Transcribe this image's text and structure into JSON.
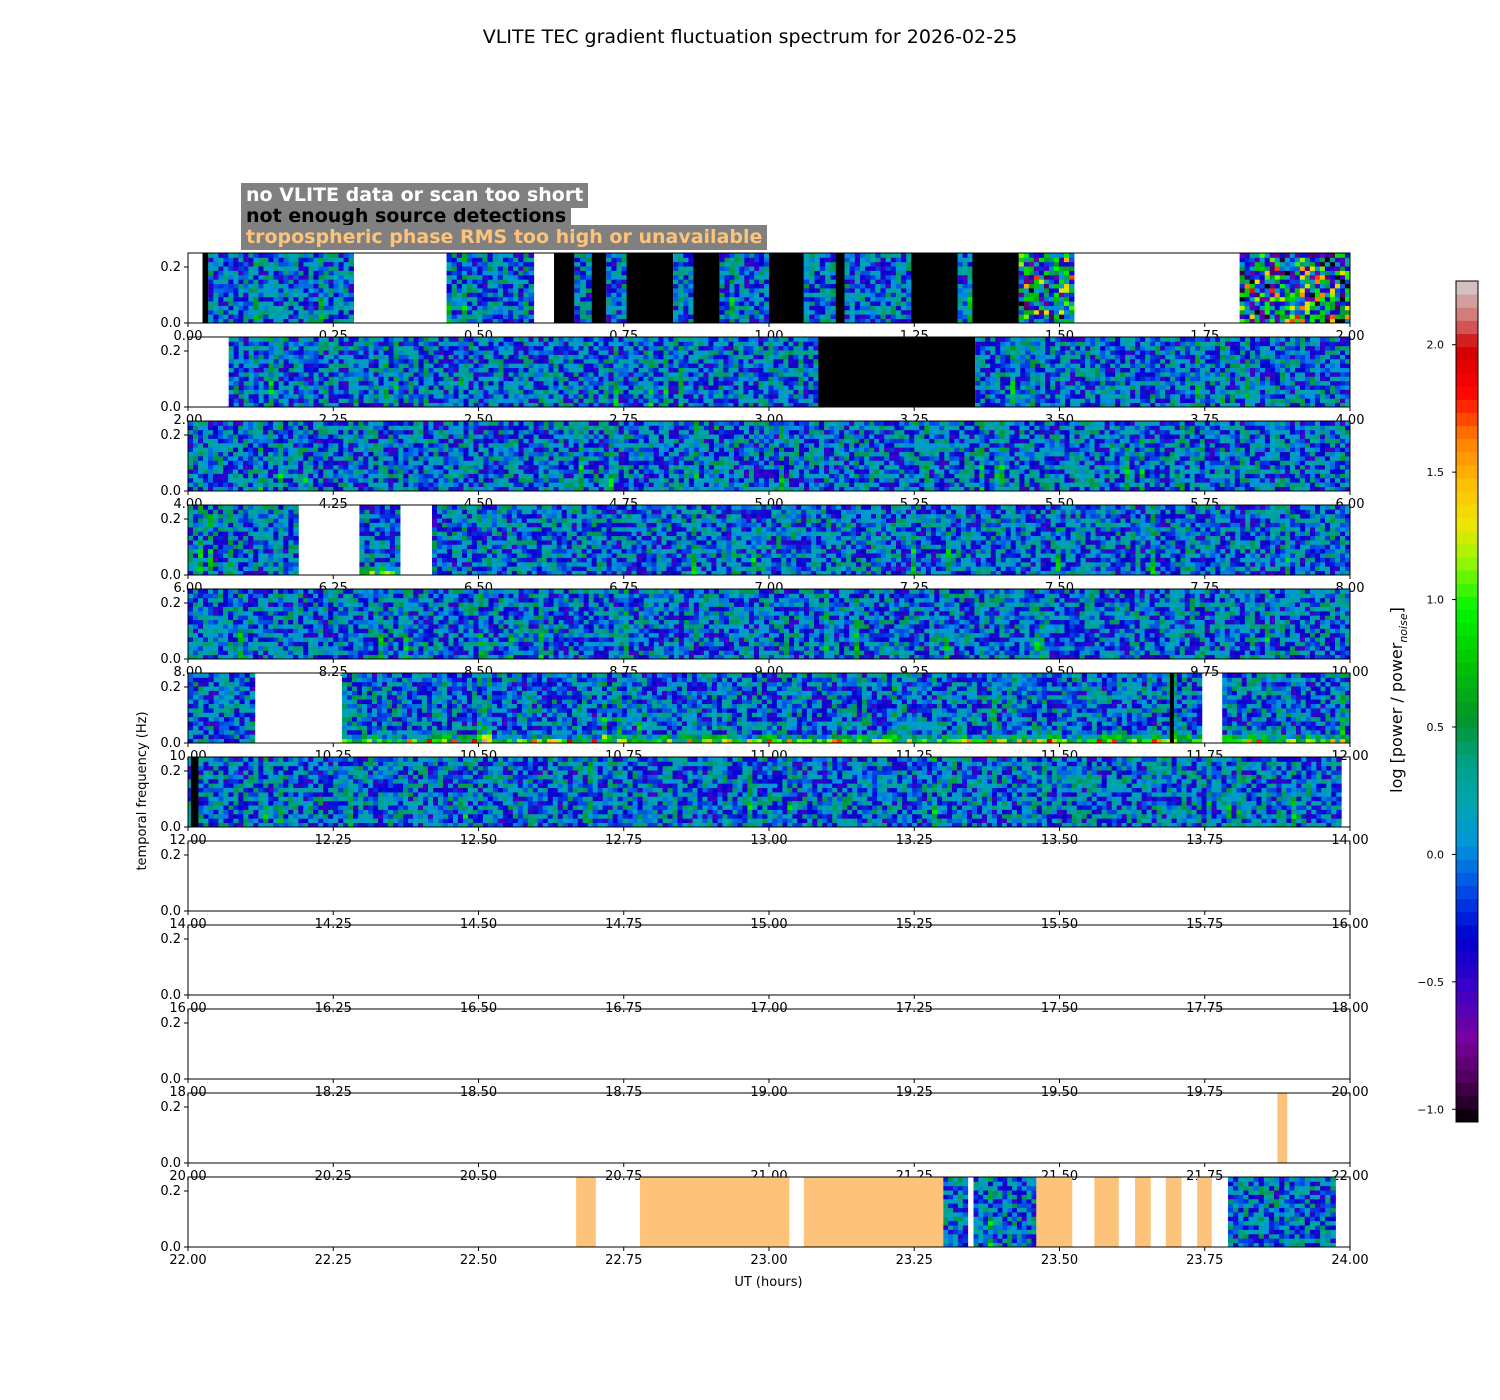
{
  "chart_data": {
    "type": "heatmap",
    "title": "VLITE TEC gradient fluctuation spectrum for 2026-02-25",
    "xlabel": "UT (hours)",
    "ylabel": "temporal frequency (Hz)",
    "colorbar_label": "log [power / power_noise]",
    "colorbar_label_main": "log [power / power",
    "colorbar_label_sub": "noise",
    "colorbar_label_end": "]",
    "colorbar_range": [
      -1.05,
      2.25
    ],
    "colorbar_ticks": [
      "−1.0",
      "−0.5",
      "0.0",
      "0.5",
      "1.0",
      "1.5",
      "2.0"
    ],
    "colorbar_tick_values": [
      -1.0,
      -0.5,
      0.0,
      0.5,
      1.0,
      1.5,
      2.0
    ],
    "y_ticks": [
      "0.0",
      "0.2"
    ],
    "y_tick_values": [
      0.0,
      0.2
    ],
    "ylim": [
      0,
      0.25
    ],
    "legend": [
      {
        "label": "no VLITE data or scan too short",
        "color": "#ffffff"
      },
      {
        "label": "not enough source detections",
        "color": "#000000"
      },
      {
        "label": "tropospheric phase RMS too high or unavailable",
        "color": "#fdc37a"
      }
    ],
    "colors": {
      "no_data": "#ffffff",
      "not_enough_detections": "#000000",
      "tropo_rms_high": "#fdc37a"
    },
    "panels": [
      {
        "xlim": [
          0,
          2
        ],
        "x_ticks": [
          "0.00",
          "0.25",
          "0.50",
          "0.75",
          "1.00",
          "1.25",
          "1.50",
          "1.75",
          "2.00"
        ],
        "segments": [
          {
            "start": 0.0,
            "end": 0.025,
            "kind": "none"
          },
          {
            "start": 0.025,
            "end": 0.035,
            "kind": "black"
          },
          {
            "start": 0.035,
            "end": 0.285,
            "kind": "data",
            "level": 0
          },
          {
            "start": 0.285,
            "end": 0.445,
            "kind": "none"
          },
          {
            "start": 0.445,
            "end": 0.595,
            "kind": "data",
            "level": 0
          },
          {
            "start": 0.595,
            "end": 0.63,
            "kind": "none"
          },
          {
            "start": 0.63,
            "end": 0.665,
            "kind": "black"
          },
          {
            "start": 0.665,
            "end": 0.695,
            "kind": "data",
            "level": 0
          },
          {
            "start": 0.695,
            "end": 0.72,
            "kind": "black"
          },
          {
            "start": 0.72,
            "end": 0.755,
            "kind": "data",
            "level": 0
          },
          {
            "start": 0.755,
            "end": 0.835,
            "kind": "black"
          },
          {
            "start": 0.835,
            "end": 0.87,
            "kind": "data",
            "level": 0
          },
          {
            "start": 0.87,
            "end": 0.915,
            "kind": "black"
          },
          {
            "start": 0.915,
            "end": 1.0,
            "kind": "data",
            "level": 0
          },
          {
            "start": 1.0,
            "end": 1.06,
            "kind": "black"
          },
          {
            "start": 1.06,
            "end": 1.115,
            "kind": "data",
            "level": 0
          },
          {
            "start": 1.115,
            "end": 1.13,
            "kind": "black"
          },
          {
            "start": 1.13,
            "end": 1.245,
            "kind": "data",
            "level": 0
          },
          {
            "start": 1.245,
            "end": 1.325,
            "kind": "black"
          },
          {
            "start": 1.325,
            "end": 1.35,
            "kind": "data",
            "level": 0
          },
          {
            "start": 1.35,
            "end": 1.43,
            "kind": "black"
          },
          {
            "start": 1.43,
            "end": 1.525,
            "kind": "data",
            "level": 2
          },
          {
            "start": 1.525,
            "end": 1.81,
            "kind": "none"
          },
          {
            "start": 1.81,
            "end": 2.0,
            "kind": "data",
            "level": 3
          }
        ]
      },
      {
        "xlim": [
          2,
          4
        ],
        "x_ticks": [
          "2.00",
          "2.25",
          "2.50",
          "2.75",
          "3.00",
          "3.25",
          "3.50",
          "3.75",
          "4.00"
        ],
        "segments": [
          {
            "start": 2.0,
            "end": 2.07,
            "kind": "none"
          },
          {
            "start": 2.07,
            "end": 3.085,
            "kind": "data",
            "level": 0
          },
          {
            "start": 3.085,
            "end": 3.355,
            "kind": "black"
          },
          {
            "start": 3.355,
            "end": 4.0,
            "kind": "data",
            "level": 0
          }
        ]
      },
      {
        "xlim": [
          4,
          6
        ],
        "x_ticks": [
          "4.00",
          "4.25",
          "4.50",
          "4.75",
          "5.00",
          "5.25",
          "5.50",
          "5.75",
          "6.00"
        ],
        "segments": [
          {
            "start": 4.0,
            "end": 6.0,
            "kind": "data",
            "level": 0
          }
        ]
      },
      {
        "xlim": [
          6,
          8
        ],
        "x_ticks": [
          "6.00",
          "6.25",
          "6.50",
          "6.75",
          "7.00",
          "7.25",
          "7.50",
          "7.75",
          "8.00"
        ],
        "segments": [
          {
            "start": 6.0,
            "end": 6.19,
            "kind": "data",
            "level": 0
          },
          {
            "start": 6.19,
            "end": 6.295,
            "kind": "none"
          },
          {
            "start": 6.295,
            "end": 6.365,
            "kind": "data",
            "level": 1
          },
          {
            "start": 6.365,
            "end": 6.42,
            "kind": "none"
          },
          {
            "start": 6.42,
            "end": 8.0,
            "kind": "data",
            "level": 0
          }
        ]
      },
      {
        "xlim": [
          8,
          10
        ],
        "x_ticks": [
          "8.00",
          "8.25",
          "8.50",
          "8.75",
          "9.00",
          "9.25",
          "9.50",
          "9.75",
          "10.00"
        ],
        "segments": [
          {
            "start": 8.0,
            "end": 10.0,
            "kind": "data",
            "level": 0
          }
        ]
      },
      {
        "xlim": [
          10,
          12
        ],
        "x_ticks": [
          "10.00",
          "10.25",
          "10.50",
          "10.75",
          "11.00",
          "11.25",
          "11.50",
          "11.75",
          "12.00"
        ],
        "segments": [
          {
            "start": 10.0,
            "end": 10.115,
            "kind": "data",
            "level": 0
          },
          {
            "start": 10.115,
            "end": 10.265,
            "kind": "none"
          },
          {
            "start": 10.265,
            "end": 11.745,
            "kind": "data",
            "level": 1
          },
          {
            "start": 11.69,
            "end": 11.697,
            "kind": "black"
          },
          {
            "start": 11.745,
            "end": 11.78,
            "kind": "none"
          },
          {
            "start": 11.78,
            "end": 12.0,
            "kind": "data",
            "level": 1
          }
        ]
      },
      {
        "xlim": [
          12,
          14
        ],
        "x_ticks": [
          "12.00",
          "12.25",
          "12.50",
          "12.75",
          "13.00",
          "13.25",
          "13.50",
          "13.75",
          "14.00"
        ],
        "segments": [
          {
            "start": 12.0,
            "end": 12.005,
            "kind": "data",
            "level": 0
          },
          {
            "start": 12.005,
            "end": 12.018,
            "kind": "black"
          },
          {
            "start": 12.018,
            "end": 13.985,
            "kind": "data",
            "level": 0
          },
          {
            "start": 13.985,
            "end": 14.0,
            "kind": "none"
          }
        ]
      },
      {
        "xlim": [
          14,
          16
        ],
        "x_ticks": [
          "14.00",
          "14.25",
          "14.50",
          "14.75",
          "15.00",
          "15.25",
          "15.50",
          "15.75",
          "16.00"
        ],
        "segments": []
      },
      {
        "xlim": [
          16,
          18
        ],
        "x_ticks": [
          "16.00",
          "16.25",
          "16.50",
          "16.75",
          "17.00",
          "17.25",
          "17.50",
          "17.75",
          "18.00"
        ],
        "segments": []
      },
      {
        "xlim": [
          18,
          20
        ],
        "x_ticks": [
          "18.00",
          "18.25",
          "18.50",
          "18.75",
          "19.00",
          "19.25",
          "19.50",
          "19.75",
          "20.00"
        ],
        "segments": []
      },
      {
        "xlim": [
          20,
          22
        ],
        "x_ticks": [
          "20.00",
          "20.25",
          "20.50",
          "20.75",
          "21.00",
          "21.25",
          "21.50",
          "21.75",
          "22.00"
        ],
        "segments": [
          {
            "start": 21.875,
            "end": 21.892,
            "kind": "tropo"
          }
        ]
      },
      {
        "xlim": [
          22,
          24
        ],
        "x_ticks": [
          "22.00",
          "22.25",
          "22.50",
          "22.75",
          "23.00",
          "23.25",
          "23.50",
          "23.75",
          "24.00"
        ],
        "segments": [
          {
            "start": 22.668,
            "end": 22.702,
            "kind": "tropo"
          },
          {
            "start": 22.778,
            "end": 23.035,
            "kind": "tropo"
          },
          {
            "start": 23.06,
            "end": 23.3,
            "kind": "tropo"
          },
          {
            "start": 23.3,
            "end": 23.342,
            "kind": "data",
            "level": 0
          },
          {
            "start": 23.352,
            "end": 23.46,
            "kind": "data",
            "level": 0
          },
          {
            "start": 23.46,
            "end": 23.522,
            "kind": "tropo"
          },
          {
            "start": 23.56,
            "end": 23.602,
            "kind": "tropo"
          },
          {
            "start": 23.63,
            "end": 23.657,
            "kind": "tropo"
          },
          {
            "start": 23.683,
            "end": 23.71,
            "kind": "tropo"
          },
          {
            "start": 23.737,
            "end": 23.762,
            "kind": "tropo"
          },
          {
            "start": 23.79,
            "end": 23.975,
            "kind": "data",
            "level": 0
          }
        ]
      }
    ]
  }
}
